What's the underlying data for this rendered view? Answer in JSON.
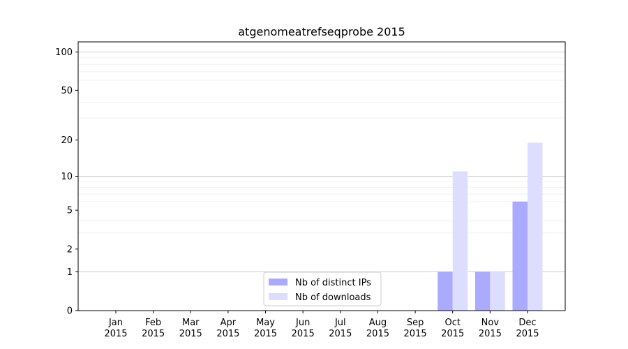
{
  "chart_data": {
    "type": "bar",
    "title": "atgenomeatrefseqprobe 2015",
    "xlabel": "",
    "ylabel": "",
    "categories": [
      "Jan\n2015",
      "Feb\n2015",
      "Mar\n2015",
      "Apr\n2015",
      "May\n2015",
      "Jun\n2015",
      "Jul\n2015",
      "Aug\n2015",
      "Sep\n2015",
      "Oct\n2015",
      "Nov\n2015",
      "Dec\n2015"
    ],
    "series": [
      {
        "name": "Nb of distinct IPs",
        "color": "#aaaaff",
        "values": [
          0,
          0,
          0,
          0,
          0,
          0,
          0,
          0,
          0,
          1,
          1,
          6
        ]
      },
      {
        "name": "Nb of downloads",
        "color": "#ddddff",
        "values": [
          0,
          0,
          0,
          0,
          0,
          0,
          0,
          0,
          0,
          11,
          1,
          19
        ]
      }
    ],
    "yscale": "symlog",
    "yticks": [
      0,
      1,
      2,
      5,
      10,
      20,
      50,
      100
    ],
    "ylim": [
      0,
      120
    ],
    "grid": true,
    "legend_position": "lower center"
  }
}
